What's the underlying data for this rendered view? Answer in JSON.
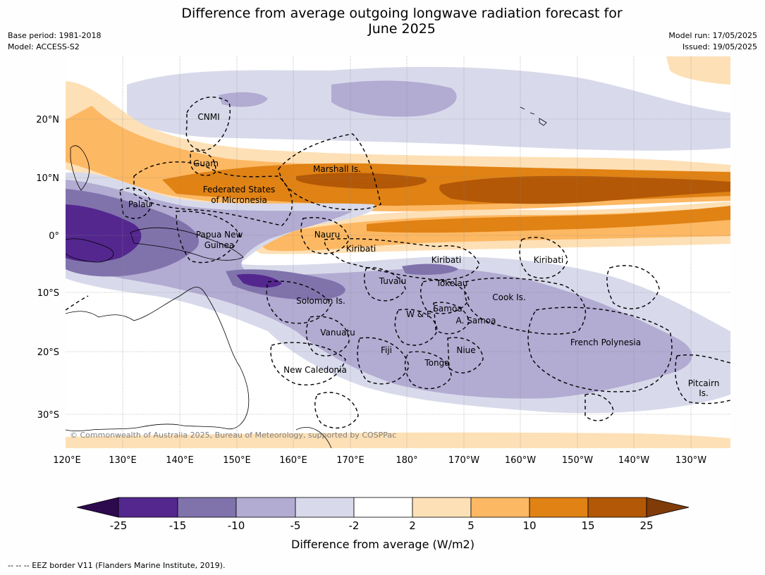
{
  "title_line1": "Difference from average outgoing longwave radiation forecast for",
  "title_line2": "June 2025",
  "base_period": "Base period: 1981-2018",
  "model": "Model: ACCESS-S2",
  "model_run": "Model run: 17/05/2025",
  "issued": "Issued: 19/05/2025",
  "copyright": "© Commonwealth of Australia 2025, Bureau of Meteorology, supported by COSPPac",
  "footnote": "--  --  -- EEZ border V11 (Flanders Marine Institute, 2019).",
  "lon_labels": [
    "120°E",
    "130°E",
    "140°E",
    "150°E",
    "160°E",
    "170°E",
    "180°",
    "170°W",
    "160°W",
    "150°W",
    "140°W",
    "130°W"
  ],
  "lat_labels": [
    "20°N",
    "10°N",
    "0°",
    "10°S",
    "20°S",
    "30°S"
  ],
  "regions": [
    "CNMI",
    "Guam",
    "Marshall Is.",
    "Federated States",
    "of Micronesia",
    "Palau",
    "Papua New",
    "Guinea",
    "Nauru",
    "Kiribati",
    "Kiribati",
    "Kiribati",
    "Tuvalu",
    "Tokelau",
    "Solomon Is.",
    "Cook Is.",
    "W & F",
    "Samoa",
    "A. Samoa",
    "Vanuatu",
    "Fiji",
    "Niue",
    "French Polynesia",
    "Tonga",
    "New Caledonia",
    "Pitcairn",
    "Is."
  ],
  "colorbar": {
    "title": "Difference from average (W/m2)",
    "ticks": [
      "-25",
      "-15",
      "-10",
      "-5",
      "-2",
      "2",
      "5",
      "10",
      "15",
      "25"
    ],
    "colors": [
      "#2d0a4e",
      "#54278f",
      "#8073ac",
      "#b2abd2",
      "#d8daeb",
      "#ffffff",
      "#fee0b6",
      "#fdb863",
      "#e08214",
      "#b35806",
      "#7f3b08"
    ]
  }
}
